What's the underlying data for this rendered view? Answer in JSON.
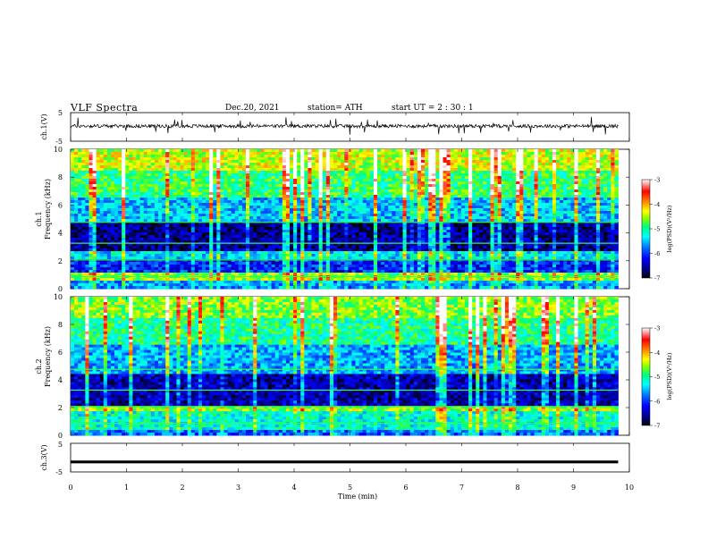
{
  "header": {
    "title": "VLF  Spectra",
    "date": "Dec.20, 2021",
    "station": "station= ATH",
    "start_ut": "start  UT  =   2  :  30 :  1"
  },
  "colors": {
    "colormap": [
      "#000000",
      "#000080",
      "#0000ff",
      "#0080ff",
      "#00c0ff",
      "#00ffff",
      "#00ff80",
      "#80ff00",
      "#ffff00",
      "#ff8000",
      "#ff0000",
      "#ffffff"
    ],
    "waveform": "#000000"
  },
  "chart_data": [
    {
      "type": "line",
      "name": "channel-1-waveform",
      "ylabel": "ch.1(V)",
      "ylim": [
        -5,
        5
      ],
      "yticks": [
        "5",
        "-5"
      ],
      "xlim": [
        0,
        10
      ],
      "description_values": {
        "baseline": 0.3,
        "noise_amplitude": 0.6,
        "spike_amplitude": 3
      }
    },
    {
      "type": "heatmap",
      "name": "channel-1-spectrogram",
      "ylabel": "Frequency  (kHz)",
      "channel_label": "ch.1",
      "ylim": [
        0,
        10
      ],
      "yticks": [
        "0",
        "2",
        "4",
        "6",
        "8",
        "10"
      ],
      "xlim": [
        0,
        9.8
      ],
      "colorbar": {
        "label": "log(PSD)(V²/Hz)",
        "ticks": [
          "-3",
          "-4",
          "-5",
          "-6",
          "-7"
        ],
        "range": [
          -7,
          -3
        ]
      },
      "bands": [
        {
          "from": 0,
          "to": 0.5,
          "level": -5.6
        },
        {
          "from": 0.5,
          "to": 1.2,
          "level": -4.6
        },
        {
          "from": 1.2,
          "to": 2.2,
          "level": -6.1
        },
        {
          "from": 2.2,
          "to": 2.6,
          "level": -5.4
        },
        {
          "from": 2.6,
          "to": 4.8,
          "level": -6.6
        },
        {
          "from": 4.8,
          "to": 6.5,
          "level": -5.5
        },
        {
          "from": 6.5,
          "to": 8.5,
          "level": -4.9
        },
        {
          "from": 8.5,
          "to": 10,
          "level": -4.4
        }
      ]
    },
    {
      "type": "heatmap",
      "name": "channel-2-spectrogram",
      "ylabel": "Frequency  (kHz)",
      "channel_label": "ch.2",
      "ylim": [
        0,
        10
      ],
      "yticks": [
        "0",
        "2",
        "4",
        "6",
        "8",
        "10"
      ],
      "xlim": [
        0,
        9.8
      ],
      "colorbar": {
        "label": "log(PSD)(V²/Hz)",
        "ticks": [
          "-3",
          "-4",
          "-5",
          "-6",
          "-7"
        ],
        "range": [
          -7,
          -3
        ]
      },
      "bands": [
        {
          "from": 0,
          "to": 0.4,
          "level": -5.8
        },
        {
          "from": 0.4,
          "to": 1.8,
          "level": -5.2
        },
        {
          "from": 1.8,
          "to": 2.2,
          "level": -4.6
        },
        {
          "from": 2.2,
          "to": 4.5,
          "level": -6.5
        },
        {
          "from": 4.5,
          "to": 6.5,
          "level": -5.6
        },
        {
          "from": 6.5,
          "to": 8.5,
          "level": -5.0
        },
        {
          "from": 8.5,
          "to": 10,
          "level": -4.6
        }
      ]
    },
    {
      "type": "line",
      "name": "channel-3-waveform",
      "ylabel": "ch.3(V)",
      "ylim": [
        -5,
        5
      ],
      "yticks": [
        "5",
        "-5"
      ],
      "xlim": [
        0,
        10
      ],
      "description_values": {
        "baseline": -1.5
      }
    }
  ],
  "time_axis": {
    "label": "Time  (min)",
    "ticks": [
      "0",
      "1",
      "2",
      "3",
      "4",
      "5",
      "6",
      "7",
      "8",
      "9",
      "10"
    ],
    "xlim": [
      0,
      10
    ]
  }
}
